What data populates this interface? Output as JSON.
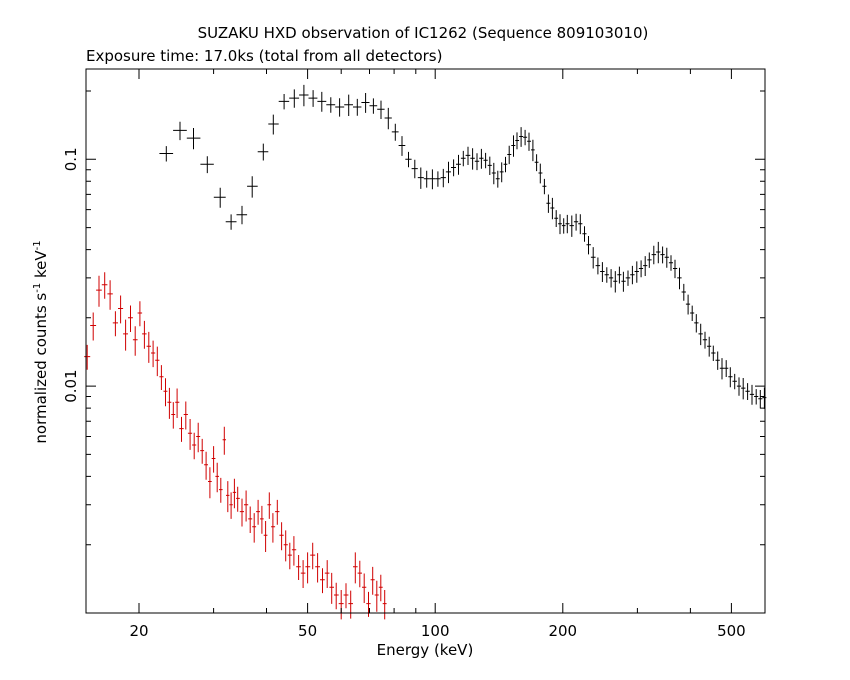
{
  "chart_data": {
    "type": "scatter",
    "title": "SUZAKU HXD observation of IC1262 (Sequence 809103010)",
    "subtitle": "Exposure time: 17.0ks (total from all detectors)",
    "xlabel": "Energy (keV)",
    "ylabel": "normalized counts s",
    "ylabel_exp1": "-1",
    "ylabel_mid": " keV",
    "ylabel_exp2": "-1",
    "x_scale": "log",
    "y_scale": "log",
    "xlim": [
      15,
      600
    ],
    "ylim": [
      0.001,
      0.25
    ],
    "x_ticks": [
      {
        "value": 20,
        "label": "20"
      },
      {
        "value": 50,
        "label": "50"
      },
      {
        "value": 100,
        "label": "100"
      },
      {
        "value": 200,
        "label": "200"
      },
      {
        "value": 500,
        "label": "500"
      }
    ],
    "y_ticks": [
      {
        "value": 0.01,
        "label": "0.01"
      },
      {
        "value": 0.1,
        "label": "0.1"
      }
    ],
    "grid": false,
    "series": [
      {
        "color": "#000000",
        "points": [
          [
            23.2,
            0.106
          ],
          [
            25.0,
            0.134
          ],
          [
            26.9,
            0.124
          ],
          [
            29.0,
            0.095
          ],
          [
            31.1,
            0.068
          ],
          [
            33.0,
            0.053
          ],
          [
            35.0,
            0.057
          ],
          [
            37.0,
            0.076
          ],
          [
            39.3,
            0.108
          ],
          [
            41.5,
            0.143
          ],
          [
            44.0,
            0.18
          ],
          [
            46.5,
            0.186
          ],
          [
            49.0,
            0.192
          ],
          [
            51.5,
            0.186
          ],
          [
            54.0,
            0.18
          ],
          [
            56.7,
            0.174
          ],
          [
            59.5,
            0.17
          ],
          [
            62.5,
            0.174
          ],
          [
            65.5,
            0.17
          ],
          [
            68.5,
            0.178
          ],
          [
            71.5,
            0.172
          ],
          [
            74.5,
            0.166
          ],
          [
            77.5,
            0.152
          ],
          [
            80.5,
            0.132
          ],
          [
            83.5,
            0.115
          ],
          [
            86.5,
            0.1
          ],
          [
            89.5,
            0.091
          ],
          [
            92.5,
            0.083
          ],
          [
            95.5,
            0.082
          ],
          [
            98.5,
            0.082
          ],
          [
            101.5,
            0.082
          ],
          [
            104.5,
            0.083
          ],
          [
            107.5,
            0.088
          ],
          [
            110.5,
            0.092
          ],
          [
            113.5,
            0.095
          ],
          [
            116.5,
            0.101
          ],
          [
            119.5,
            0.104
          ],
          [
            122.5,
            0.101
          ],
          [
            125.5,
            0.098
          ],
          [
            128.5,
            0.101
          ],
          [
            131.5,
            0.099
          ],
          [
            134.5,
            0.094
          ],
          [
            137.5,
            0.087
          ],
          [
            140.5,
            0.082
          ],
          [
            143.5,
            0.088
          ],
          [
            146.5,
            0.095
          ],
          [
            149.5,
            0.105
          ],
          [
            153,
            0.115
          ],
          [
            156,
            0.121
          ],
          [
            159.5,
            0.126
          ],
          [
            163,
            0.125
          ],
          [
            166.5,
            0.12
          ],
          [
            170,
            0.11
          ],
          [
            173.5,
            0.097
          ],
          [
            177,
            0.087
          ],
          [
            181,
            0.076
          ],
          [
            185,
            0.064
          ],
          [
            189,
            0.061
          ],
          [
            193,
            0.055
          ],
          [
            197,
            0.052
          ],
          [
            201,
            0.051
          ],
          [
            205,
            0.052
          ],
          [
            210,
            0.051
          ],
          [
            215,
            0.053
          ],
          [
            220,
            0.052
          ],
          [
            225,
            0.047
          ],
          [
            230,
            0.042
          ],
          [
            236,
            0.037
          ],
          [
            242,
            0.034
          ],
          [
            248,
            0.032
          ],
          [
            254,
            0.031
          ],
          [
            260,
            0.03
          ],
          [
            266,
            0.029
          ],
          [
            272,
            0.031
          ],
          [
            278,
            0.029
          ],
          [
            285,
            0.03
          ],
          [
            292,
            0.031
          ],
          [
            299,
            0.032
          ],
          [
            306,
            0.033
          ],
          [
            313,
            0.034
          ],
          [
            320,
            0.036
          ],
          [
            328,
            0.038
          ],
          [
            336,
            0.039
          ],
          [
            344,
            0.038
          ],
          [
            352,
            0.037
          ],
          [
            360,
            0.035
          ],
          [
            368,
            0.033
          ],
          [
            377,
            0.03
          ],
          [
            386,
            0.026
          ],
          [
            395,
            0.023
          ],
          [
            404,
            0.021
          ],
          [
            413,
            0.019
          ],
          [
            423,
            0.017
          ],
          [
            433,
            0.016
          ],
          [
            443,
            0.015
          ],
          [
            453,
            0.014
          ],
          [
            464,
            0.013
          ],
          [
            475,
            0.012
          ],
          [
            486,
            0.012
          ],
          [
            497,
            0.011
          ],
          [
            509,
            0.0105
          ],
          [
            521,
            0.01
          ],
          [
            533,
            0.0098
          ],
          [
            546,
            0.0095
          ],
          [
            559,
            0.0092
          ],
          [
            572,
            0.009
          ],
          [
            585,
            0.0088
          ],
          [
            598,
            0.0089
          ]
        ]
      },
      {
        "color": "#d00000",
        "points": [
          [
            15.1,
            0.0135
          ],
          [
            15.6,
            0.0185
          ],
          [
            16.1,
            0.0265
          ],
          [
            16.6,
            0.028
          ],
          [
            17.1,
            0.0255
          ],
          [
            17.6,
            0.019
          ],
          [
            18.1,
            0.022
          ],
          [
            18.6,
            0.017
          ],
          [
            19.1,
            0.02
          ],
          [
            19.6,
            0.016
          ],
          [
            20.1,
            0.021
          ],
          [
            20.6,
            0.017
          ],
          [
            21.1,
            0.015
          ],
          [
            21.6,
            0.014
          ],
          [
            22.1,
            0.013
          ],
          [
            22.6,
            0.011
          ],
          [
            23.1,
            0.0095
          ],
          [
            23.6,
            0.0085
          ],
          [
            24.1,
            0.0075
          ],
          [
            24.6,
            0.0085
          ],
          [
            25.2,
            0.0065
          ],
          [
            25.8,
            0.0075
          ],
          [
            26.4,
            0.0062
          ],
          [
            27.0,
            0.0055
          ],
          [
            27.6,
            0.006
          ],
          [
            28.2,
            0.0052
          ],
          [
            28.8,
            0.0045
          ],
          [
            29.4,
            0.0038
          ],
          [
            30.0,
            0.0048
          ],
          [
            30.6,
            0.004
          ],
          [
            31.2,
            0.0035
          ],
          [
            31.8,
            0.0058
          ],
          [
            32.4,
            0.0033
          ],
          [
            33.0,
            0.003
          ],
          [
            33.6,
            0.0034
          ],
          [
            34.2,
            0.0032
          ],
          [
            35.0,
            0.0028
          ],
          [
            35.8,
            0.003
          ],
          [
            36.6,
            0.0026
          ],
          [
            37.4,
            0.0024
          ],
          [
            38.2,
            0.0028
          ],
          [
            39.0,
            0.0026
          ],
          [
            39.8,
            0.0022
          ],
          [
            40.6,
            0.003
          ],
          [
            41.4,
            0.0024
          ],
          [
            42.4,
            0.0028
          ],
          [
            43.4,
            0.0022
          ],
          [
            44.4,
            0.002
          ],
          [
            45.4,
            0.0018
          ],
          [
            46.4,
            0.0019
          ],
          [
            47.6,
            0.0016
          ],
          [
            48.8,
            0.0015
          ],
          [
            50.0,
            0.0016
          ],
          [
            51.4,
            0.0018
          ],
          [
            52.8,
            0.0016
          ],
          [
            54.2,
            0.0014
          ],
          [
            55.6,
            0.0015
          ],
          [
            57.0,
            0.0013
          ],
          [
            58.4,
            0.0012
          ],
          [
            60.0,
            0.0011
          ],
          [
            61.6,
            0.0012
          ],
          [
            63.2,
            0.0011
          ],
          [
            64.8,
            0.0016
          ],
          [
            66.4,
            0.0015
          ],
          [
            68.0,
            0.0013
          ],
          [
            69.6,
            0.0011
          ],
          [
            71.2,
            0.0014
          ],
          [
            72.8,
            0.0012
          ],
          [
            74.4,
            0.0013
          ],
          [
            76.0,
            0.0011
          ]
        ]
      }
    ]
  }
}
